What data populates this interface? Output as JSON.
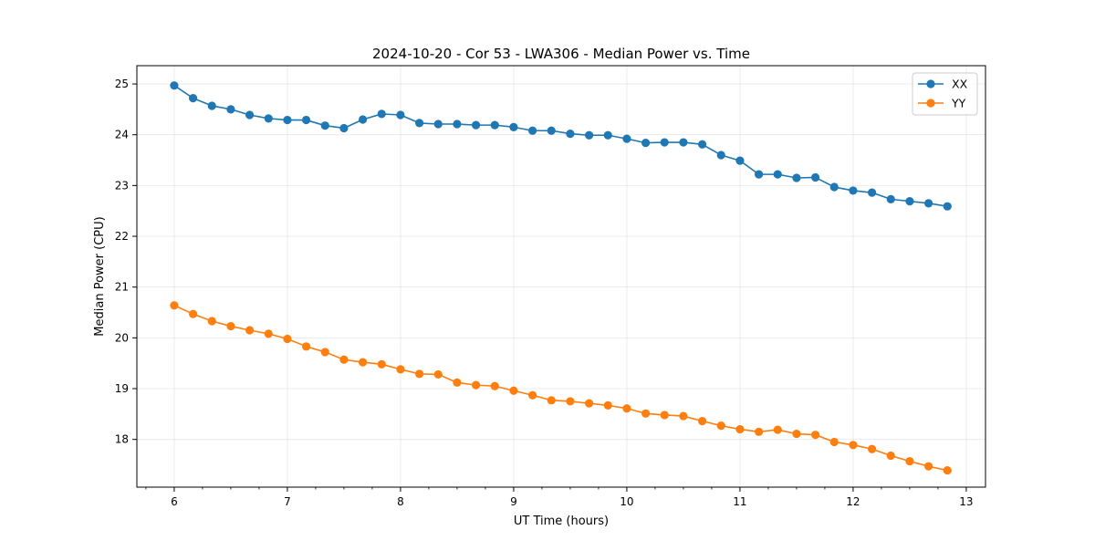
{
  "chart_data": {
    "type": "line",
    "title": "2024-10-20 - Cor 53 - LWA306 - Median Power vs. Time",
    "xlabel": "UT Time (hours)",
    "ylabel": "Median Power (CPU)",
    "xlim": [
      5.67,
      13.17
    ],
    "ylim": [
      17.06,
      25.36
    ],
    "xticks": [
      6,
      7,
      8,
      9,
      10,
      11,
      12,
      13
    ],
    "yticks": [
      18,
      19,
      20,
      21,
      22,
      23,
      24,
      25
    ],
    "grid": true,
    "legend_position": "top-right",
    "x": [
      6.0,
      6.1667,
      6.3333,
      6.5,
      6.6667,
      6.8333,
      7.0,
      7.1667,
      7.3333,
      7.5,
      7.6667,
      7.8333,
      8.0,
      8.1667,
      8.3333,
      8.5,
      8.6667,
      8.8333,
      9.0,
      9.1667,
      9.3333,
      9.5,
      9.6667,
      9.8333,
      10.0,
      10.1667,
      10.3333,
      10.5,
      10.6667,
      10.8333,
      11.0,
      11.1667,
      11.3333,
      11.5,
      11.6667,
      11.8333,
      12.0,
      12.1667,
      12.3333,
      12.5,
      12.6667,
      12.8333
    ],
    "series": [
      {
        "name": "XX",
        "color": "#1f77b4",
        "values": [
          24.97,
          24.72,
          24.57,
          24.5,
          24.39,
          24.32,
          24.29,
          24.29,
          24.18,
          24.13,
          24.3,
          24.41,
          24.39,
          24.23,
          24.21,
          24.21,
          24.19,
          24.19,
          24.15,
          24.08,
          24.08,
          24.02,
          23.99,
          23.99,
          23.92,
          23.84,
          23.85,
          23.85,
          23.81,
          23.6,
          23.49,
          23.22,
          23.22,
          23.15,
          23.16,
          22.97,
          22.9,
          22.86,
          22.73,
          22.69,
          22.65,
          22.59
        ]
      },
      {
        "name": "YY",
        "color": "#ff7f0e",
        "values": [
          20.64,
          20.47,
          20.33,
          20.23,
          20.15,
          20.08,
          19.98,
          19.83,
          19.72,
          19.57,
          19.52,
          19.48,
          19.38,
          19.29,
          19.28,
          19.12,
          19.07,
          19.05,
          18.96,
          18.87,
          18.77,
          18.75,
          18.71,
          18.67,
          18.61,
          18.51,
          18.48,
          18.46,
          18.36,
          18.27,
          18.2,
          18.15,
          18.19,
          18.11,
          18.09,
          17.95,
          17.89,
          17.81,
          17.68,
          17.57,
          17.47,
          17.39
        ]
      }
    ]
  }
}
